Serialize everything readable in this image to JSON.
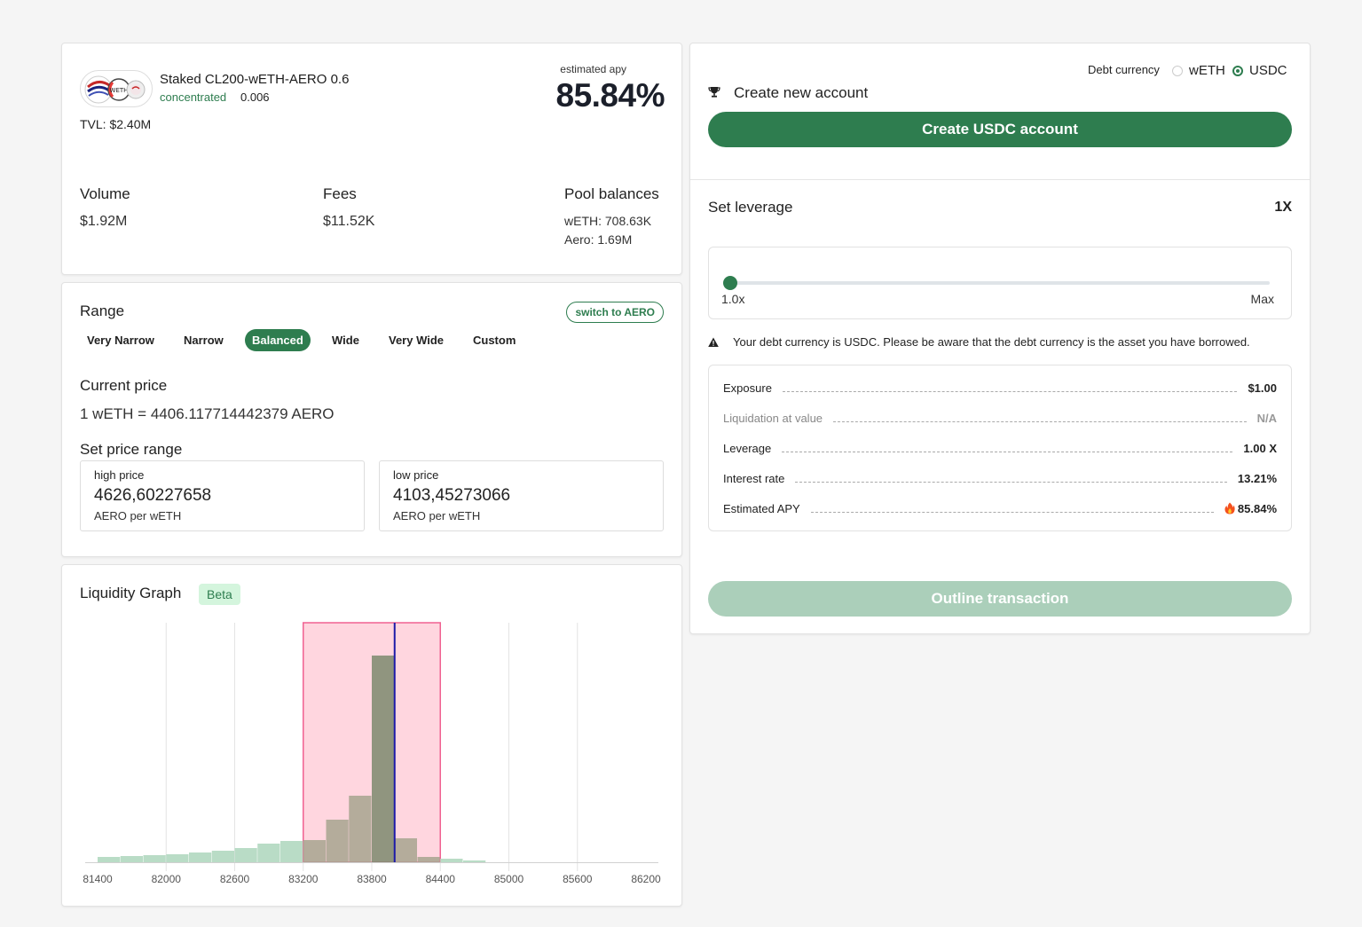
{
  "pool": {
    "name": "Staked CL200-wETH-AERO 0.6",
    "type": "concentrated",
    "fee": "0.006",
    "tvl": "TVL: $2.40M",
    "apy_label": "estimated apy",
    "apy_value": "85.84%",
    "logo_token_text": "WETH",
    "stats": {
      "volume_label": "Volume",
      "volume_value": "$1.92M",
      "fees_label": "Fees",
      "fees_value": "$11.52K",
      "balances_label": "Pool balances",
      "balance_weth": "wETH: 708.63K",
      "balance_aero": "Aero: 1.69M"
    }
  },
  "range": {
    "title": "Range",
    "switch_label": "switch to AERO",
    "tabs": [
      {
        "label": "Very Narrow",
        "active": false
      },
      {
        "label": "Narrow",
        "active": false
      },
      {
        "label": "Balanced",
        "active": true
      },
      {
        "label": "Wide",
        "active": false
      },
      {
        "label": "Very Wide",
        "active": false
      },
      {
        "label": "Custom",
        "active": false
      }
    ],
    "current_price_label": "Current price",
    "current_price_value": "1 wETH = 4406.117714442379 AERO",
    "set_range_label": "Set price range",
    "high": {
      "label": "high price",
      "value": "4626,60227658",
      "unit": "AERO per wETH"
    },
    "low": {
      "label": "low price",
      "value": "4103,45273066",
      "unit": "AERO per wETH"
    }
  },
  "graph": {
    "title": "Liquidity Graph",
    "badge": "Beta",
    "colors": {
      "bar": "#b9dcc6",
      "selection": "#ffd6df",
      "selection_border": "#f06292",
      "current": "#1d1aa8",
      "bar_in_range": "#a7a58f",
      "bar_peak": "#7c8a6f"
    },
    "chart_data": {
      "type": "bar",
      "x_ticks": [
        81400,
        82000,
        82600,
        83200,
        83800,
        84400,
        85000,
        85600,
        86200
      ],
      "tick_labels": [
        "81400",
        "82000",
        "82600",
        "83200",
        "83800",
        "84400",
        "85000",
        "85600",
        "86200"
      ],
      "bin_width": 200,
      "bins_start": [
        81400,
        81600,
        81800,
        82000,
        82200,
        82400,
        82600,
        82800,
        83000,
        83200,
        83400,
        83600,
        83800,
        84000,
        84200,
        84400,
        84600
      ],
      "liquidity": [
        6,
        7,
        8,
        9,
        11,
        13,
        16,
        21,
        24,
        25,
        48,
        75,
        233,
        27,
        6,
        4,
        2
      ],
      "ylim": [
        0,
        270
      ],
      "selected_range": [
        83200,
        84400
      ],
      "current_tick": 84000,
      "grid_x": true
    }
  },
  "account": {
    "debt_label": "Debt currency",
    "currency_options": [
      {
        "label": "wETH",
        "checked": false
      },
      {
        "label": "USDC",
        "checked": true
      }
    ],
    "create_title": "Create new account",
    "create_button": "Create USDC account",
    "leverage_title": "Set leverage",
    "leverage_value": "1X",
    "slider_min": "1.0x",
    "slider_max": "Max",
    "slider_fraction": 0,
    "warning": "Your debt currency is USDC. Please be aware that the debt currency is the asset you have borrowed.",
    "details": [
      {
        "label": "Exposure",
        "value": "$1.00",
        "muted": false
      },
      {
        "label": "Liquidation at value",
        "value": "N/A",
        "muted": true
      },
      {
        "label": "Leverage",
        "value": "1.00 X",
        "muted": false
      },
      {
        "label": "Interest rate",
        "value": "13.21%",
        "muted": false
      },
      {
        "label": "Estimated APY",
        "value": "85.84%",
        "muted": false,
        "icon": "fire-icon"
      }
    ],
    "outline_button": "Outline transaction"
  }
}
